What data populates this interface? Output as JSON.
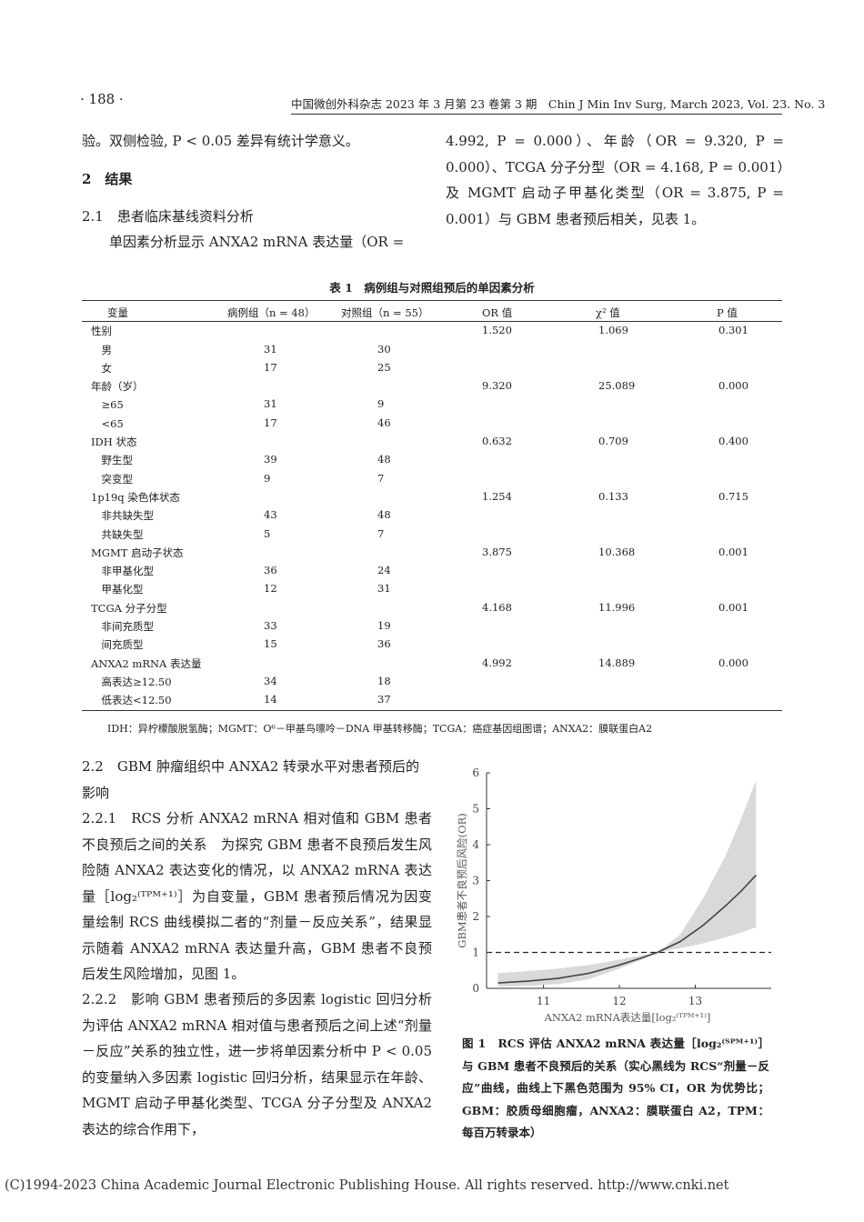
{
  "header": {
    "page_number": "· 188 ·",
    "journal": "中国微创外科杂志 2023 年 3 月第 23 卷第 3 期　Chin J Min Inv Surg, March 2023, Vol. 23. No. 3"
  },
  "left_top": [
    "验。双侧检验, P < 0.05 差异有统计学意义。"
  ],
  "section2": "2　结果",
  "section21": "2.1　患者临床基线资料分析",
  "s21_text": "单因素分析显示 ANXA2 mRNA 表达量（OR =",
  "right_top": "4.992, P = 0.000）、年龄（OR = 9.320, P = 0.000）、TCGA 分子分型（OR = 4.168, P = 0.001）及 MGMT 启动子甲基化类型（OR = 3.875, P = 0.001）与 GBM 患者预后相关，见表 1。",
  "table": {
    "title": "表 1　病例组与对照组预后的单因素分析",
    "headers": [
      "变量",
      "病例组（n = 48）",
      "对照组（n = 55）",
      "OR 值",
      "χ² 值",
      "P 值"
    ],
    "rows": [
      [
        "性别",
        "",
        "",
        "1.520",
        "1.069",
        "0.301"
      ],
      [
        "　男",
        "31",
        "30",
        "",
        "",
        ""
      ],
      [
        "　女",
        "17",
        "25",
        "",
        "",
        ""
      ],
      [
        "年龄（岁）",
        "",
        "",
        "9.320",
        "25.089",
        "0.000"
      ],
      [
        "　≥65",
        "31",
        "9",
        "",
        "",
        ""
      ],
      [
        "　<65",
        "17",
        "46",
        "",
        "",
        ""
      ],
      [
        "IDH 状态",
        "",
        "",
        "0.632",
        "0.709",
        "0.400"
      ],
      [
        "　野生型",
        "39",
        "48",
        "",
        "",
        ""
      ],
      [
        "　突变型",
        "9",
        "7",
        "",
        "",
        ""
      ],
      [
        "1p19q 染色体状态",
        "",
        "",
        "1.254",
        "0.133",
        "0.715"
      ],
      [
        "　非共缺失型",
        "43",
        "48",
        "",
        "",
        ""
      ],
      [
        "　共缺失型",
        "5",
        "7",
        "",
        "",
        ""
      ],
      [
        "MGMT 启动子状态",
        "",
        "",
        "3.875",
        "10.368",
        "0.001"
      ],
      [
        "　非甲基化型",
        "36",
        "24",
        "",
        "",
        ""
      ],
      [
        "　甲基化型",
        "12",
        "31",
        "",
        "",
        ""
      ],
      [
        "TCGA 分子分型",
        "",
        "",
        "4.168",
        "11.996",
        "0.001"
      ],
      [
        "　非间充质型",
        "33",
        "19",
        "",
        "",
        ""
      ],
      [
        "　间充质型",
        "15",
        "36",
        "",
        "",
        ""
      ],
      [
        "ANXA2 mRNA 表达量",
        "",
        "",
        "4.992",
        "14.889",
        "0.000"
      ],
      [
        "　高表达≥12.50",
        "34",
        "18",
        "",
        "",
        ""
      ],
      [
        "　低表达<12.50",
        "14",
        "37",
        "",
        "",
        ""
      ]
    ],
    "note": "IDH：异柠檬酸脱氢酶；MGMT：O⁶－甲基鸟嘌呤－DNA 甲基转移酶；TCGA：癌症基因组图谱；ANXA2：膜联蛋白A2"
  },
  "section22": "2.2　GBM 肿瘤组织中 ANXA2 转录水平对患者预后的影响",
  "s221": "2.2.1　RCS 分析 ANXA2 mRNA 相对值和 GBM 患者不良预后之间的关系　为探究 GBM 患者不良预后发生风险随 ANXA2 表达变化的情况，以 ANXA2 mRNA 表达量［log₂⁽ᵀᴾᴹ⁺¹⁾］为自变量，GBM 患者预后情况为因变量绘制 RCS 曲线模拟二者的“剂量－反应关系”，结果显示随着 ANXA2 mRNA 表达量升高，GBM 患者不良预后发生风险增加，见图 1。",
  "s222": "2.2.2　影响 GBM 患者预后的多因素 logistic 回归分析　为评估 ANXA2 mRNA 相对值与患者预后之间上述“剂量－反应”关系的独立性，进一步将单因素分析中 P < 0.05 的变量纳入多因素 logistic 回归分析，结果显示在年龄、MGMT 启动子甲基化类型、TCGA 分子分型及 ANXA2 表达的综合作用下，",
  "figure_caption": "图 1　RCS 评估 ANXA2 mRNA 表达量［log₂⁽ᵀᴾᴹ⁺¹⁾］与 GBM 患者不良预后的关系（实心黑线为 RCS“剂量－反应”曲线，曲线上下黑色范围为 95% CI，OR 为优势比；GBM：胶质母细胞瘤，ANXA2：膜联蛋白 A2，TPM：每百万转录本）",
  "footer": "(C)1994-2023 China Academic Journal Electronic Publishing House. All rights reserved.    http://www.cnki.net",
  "chart_data": {
    "type": "line",
    "xlabel": "ANXA2 mRNA表达量[log₂⁽ᵀᴾᴹ⁺¹⁾]",
    "ylabel": "GBM患者不良预后风险(OR)",
    "xlim": [
      10.25,
      14.0
    ],
    "ylim": [
      0,
      6
    ],
    "xticks": [
      "11",
      "12",
      "13"
    ],
    "yticks": [
      "0",
      "1",
      "2",
      "3",
      "4",
      "5",
      "6"
    ],
    "reference_line": 1,
    "x": [
      10.4,
      10.8,
      11.2,
      11.6,
      12.0,
      12.3,
      12.5,
      12.8,
      13.1,
      13.4,
      13.6,
      13.8
    ],
    "y": [
      0.15,
      0.2,
      0.28,
      0.42,
      0.65,
      0.85,
      1.0,
      1.3,
      1.75,
      2.3,
      2.7,
      3.15
    ],
    "ci_lower": [
      0.05,
      0.07,
      0.12,
      0.25,
      0.55,
      0.8,
      1.0,
      1.12,
      1.25,
      1.42,
      1.55,
      1.7
    ],
    "ci_upper": [
      0.42,
      0.48,
      0.55,
      0.65,
      0.8,
      0.92,
      1.0,
      1.5,
      2.5,
      3.7,
      4.7,
      5.8
    ],
    "colors": {
      "line": "#444444",
      "band": "#d9d9d9"
    }
  }
}
